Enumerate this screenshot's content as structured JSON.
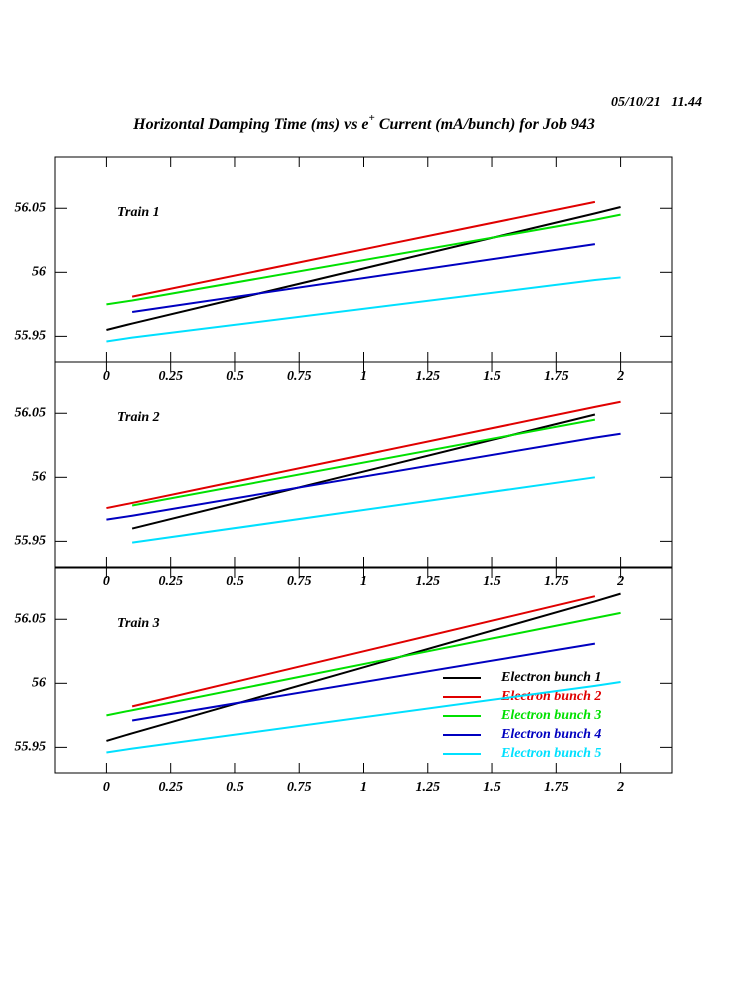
{
  "timestamp": "05/10/21   11.44",
  "title": [
    "Horizontal Damping Time (ms) vs e",
    "+",
    " Current (mA/bunch) for Job 943"
  ],
  "chart_data": [
    {
      "type": "line",
      "annotation": "Train 1",
      "x": [
        0,
        0.1,
        1.9,
        2
      ],
      "xlim": [
        -0.2,
        2.2
      ],
      "xticks": [
        0,
        0.25,
        0.5,
        0.75,
        1,
        1.25,
        1.5,
        1.75,
        2
      ],
      "ylim": [
        55.93,
        56.09
      ],
      "yticks": [
        55.95,
        56,
        56.05
      ],
      "series": [
        {
          "color": "#000000",
          "values": [
            55.955,
            55.96,
            56.046,
            56.051
          ]
        },
        {
          "color": "#e00000",
          "values": [
            null,
            55.981,
            56.055,
            null
          ]
        },
        {
          "color": "#00e000",
          "values": [
            55.975,
            55.978,
            56.041,
            56.045
          ]
        },
        {
          "color": "#0000c0",
          "values": [
            null,
            55.969,
            56.022,
            null
          ]
        },
        {
          "color": "#00e0ff",
          "values": [
            55.946,
            55.949,
            55.994,
            55.996
          ]
        }
      ]
    },
    {
      "type": "line",
      "annotation": "Train 2",
      "x": [
        0,
        0.1,
        1.9,
        2
      ],
      "xlim": [
        -0.2,
        2.2
      ],
      "xticks": [
        0,
        0.25,
        0.5,
        0.75,
        1,
        1.25,
        1.5,
        1.75,
        2
      ],
      "ylim": [
        55.93,
        56.09
      ],
      "yticks": [
        55.95,
        56,
        56.05
      ],
      "series": [
        {
          "color": "#000000",
          "values": [
            null,
            55.96,
            56.049,
            null
          ]
        },
        {
          "color": "#e00000",
          "values": [
            55.976,
            55.98,
            56.055,
            56.059
          ]
        },
        {
          "color": "#00e000",
          "values": [
            null,
            55.978,
            56.045,
            null
          ]
        },
        {
          "color": "#0000c0",
          "values": [
            55.967,
            55.97,
            56.031,
            56.034
          ]
        },
        {
          "color": "#00e0ff",
          "values": [
            null,
            55.949,
            56.0,
            null
          ]
        }
      ]
    },
    {
      "type": "line",
      "annotation": "Train 3",
      "x": [
        0,
        0.1,
        1.9,
        2
      ],
      "xlim": [
        -0.2,
        2.2
      ],
      "xticks": [
        0,
        0.25,
        0.5,
        0.75,
        1,
        1.25,
        1.5,
        1.75,
        2
      ],
      "ylim": [
        55.93,
        56.09
      ],
      "yticks": [
        55.95,
        56,
        56.05
      ],
      "legend": "lower right",
      "series": [
        {
          "name": "Electron bunch 1",
          "color": "#000000",
          "values": [
            55.955,
            55.961,
            56.064,
            56.07
          ]
        },
        {
          "name": "Electron bunch 2",
          "color": "#e00000",
          "values": [
            null,
            55.982,
            56.068,
            null
          ]
        },
        {
          "name": "Electron bunch 3",
          "color": "#00e000",
          "values": [
            55.975,
            55.979,
            56.051,
            56.055
          ]
        },
        {
          "name": "Electron bunch 4",
          "color": "#0000c0",
          "values": [
            null,
            55.971,
            56.031,
            null
          ]
        },
        {
          "name": "Electron bunch 5",
          "color": "#00e0ff",
          "values": [
            55.946,
            55.949,
            55.998,
            56.001
          ]
        }
      ]
    }
  ]
}
